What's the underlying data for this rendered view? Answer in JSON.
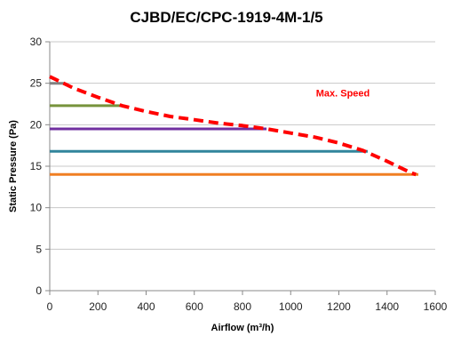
{
  "chart_data": {
    "type": "line",
    "title": "CJBD/EC/CPC-1919-4M-1/5",
    "xlabel": "Airflow (m³/h)",
    "ylabel": "Static Pressure (Pa)",
    "xlim": [
      0,
      1600
    ],
    "ylim": [
      0,
      30
    ],
    "xticks": [
      0,
      200,
      400,
      600,
      800,
      1000,
      1200,
      1400,
      1600
    ],
    "yticks": [
      0,
      5,
      10,
      15,
      20,
      25,
      30
    ],
    "grid": "horizontal",
    "annotation": {
      "text": "Max. Speed",
      "color": "#ff0000"
    },
    "series": [
      {
        "name": "Max. Speed",
        "style": "dashed",
        "color": "#ff0000",
        "x": [
          0,
          50,
          100,
          200,
          300,
          400,
          500,
          600,
          700,
          800,
          900,
          1000,
          1100,
          1200,
          1300,
          1400,
          1450,
          1500,
          1520
        ],
        "y": [
          25.8,
          25.1,
          24.4,
          23.3,
          22.3,
          21.6,
          21.0,
          20.6,
          20.2,
          19.9,
          19.5,
          19.0,
          18.5,
          17.8,
          16.9,
          15.6,
          14.9,
          14.2,
          14.0
        ]
      },
      {
        "color": "#808080",
        "x": [
          0,
          60
        ],
        "y": [
          25.0,
          25.0
        ]
      },
      {
        "color": "#77933c",
        "x": [
          0,
          300
        ],
        "y": [
          22.3,
          22.3
        ]
      },
      {
        "color": "#7030a0",
        "x": [
          0,
          900
        ],
        "y": [
          19.5,
          19.5
        ]
      },
      {
        "color": "#31859c",
        "x": [
          0,
          1320
        ],
        "y": [
          16.8,
          16.8
        ]
      },
      {
        "color": "#f07f22",
        "x": [
          0,
          1530
        ],
        "y": [
          14.0,
          14.0
        ]
      }
    ]
  }
}
